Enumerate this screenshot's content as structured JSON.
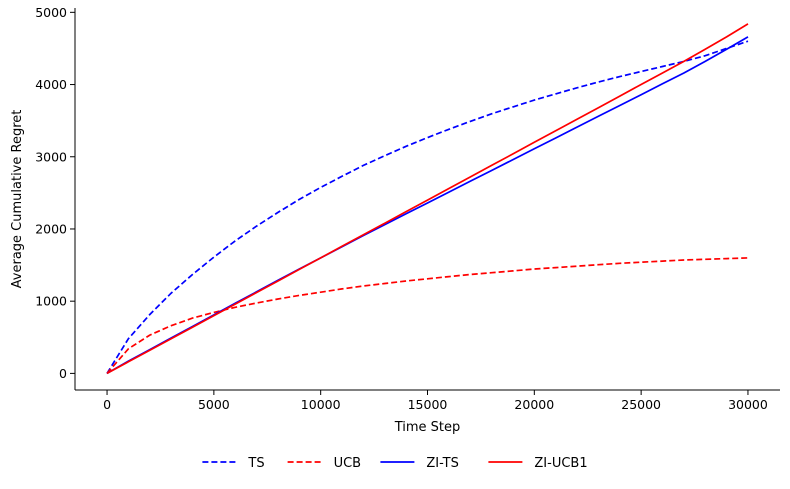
{
  "chart_data": {
    "type": "line",
    "title": "",
    "xlabel": "Time Step",
    "ylabel": "Average Cumulative Regret",
    "xlim": [
      -1500,
      31500
    ],
    "ylim": [
      -230,
      5060
    ],
    "xticks": [
      0,
      5000,
      10000,
      15000,
      20000,
      25000,
      30000
    ],
    "yticks": [
      0,
      1000,
      2000,
      3000,
      4000,
      5000
    ],
    "grid": false,
    "legend_position": "bottom-center",
    "x": [
      0,
      1000,
      2000,
      3000,
      4000,
      5000,
      6000,
      7000,
      8000,
      9000,
      10000,
      11000,
      12000,
      13000,
      14000,
      15000,
      16000,
      17000,
      18000,
      19000,
      20000,
      21000,
      22000,
      23000,
      24000,
      25000,
      26000,
      27000,
      28000,
      29000,
      30000
    ],
    "series": [
      {
        "name": "TS",
        "color": "#0000ff",
        "dash": "dashed",
        "values": [
          0,
          480,
          815,
          1110,
          1370,
          1610,
          1835,
          2040,
          2230,
          2410,
          2575,
          2730,
          2880,
          3015,
          3145,
          3265,
          3380,
          3490,
          3595,
          3690,
          3785,
          3870,
          3955,
          4035,
          4110,
          4180,
          4250,
          4320,
          4400,
          4500,
          4600
        ]
      },
      {
        "name": "UCB",
        "color": "#ff0000",
        "dash": "dashed",
        "values": [
          0,
          340,
          530,
          660,
          765,
          845,
          915,
          975,
          1030,
          1080,
          1125,
          1170,
          1210,
          1245,
          1280,
          1310,
          1340,
          1370,
          1395,
          1420,
          1445,
          1465,
          1485,
          1505,
          1525,
          1540,
          1555,
          1570,
          1580,
          1590,
          1600
        ]
      },
      {
        "name": "ZI-TS",
        "color": "#0000ff",
        "dash": "solid",
        "values": [
          0,
          170,
          330,
          490,
          650,
          810,
          970,
          1130,
          1290,
          1445,
          1600,
          1755,
          1910,
          2060,
          2210,
          2360,
          2510,
          2660,
          2810,
          2960,
          3110,
          3260,
          3410,
          3560,
          3710,
          3860,
          4010,
          4160,
          4320,
          4490,
          4660
        ]
      },
      {
        "name": "ZI-UCB1",
        "color": "#ff0000",
        "dash": "solid",
        "values": [
          0,
          160,
          320,
          480,
          640,
          800,
          960,
          1120,
          1280,
          1440,
          1600,
          1760,
          1920,
          2080,
          2240,
          2400,
          2560,
          2720,
          2880,
          3040,
          3200,
          3360,
          3520,
          3680,
          3840,
          4000,
          4160,
          4320,
          4490,
          4660,
          4840
        ]
      }
    ]
  }
}
